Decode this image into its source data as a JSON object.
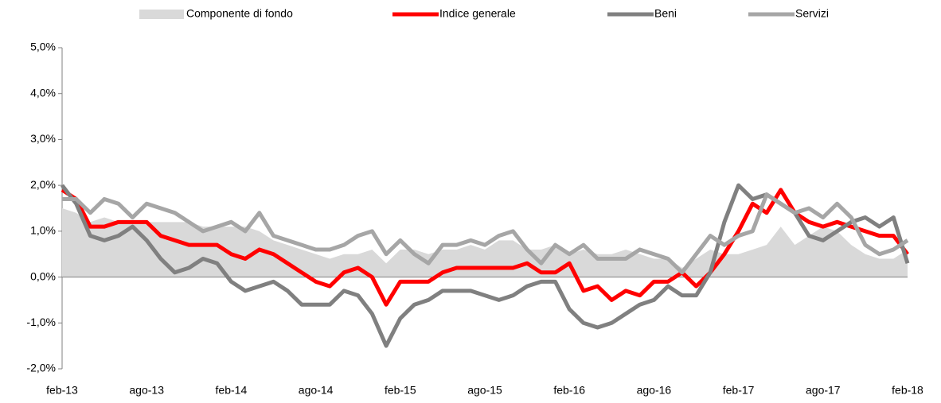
{
  "chart_data": {
    "type": "line",
    "categories": [
      "feb-13",
      null,
      null,
      null,
      null,
      null,
      "ago-13",
      null,
      null,
      null,
      null,
      null,
      "feb-14",
      null,
      null,
      null,
      null,
      null,
      "ago-14",
      null,
      null,
      null,
      null,
      null,
      "feb-15",
      null,
      null,
      null,
      null,
      null,
      "ago-15",
      null,
      null,
      null,
      null,
      null,
      "feb-16",
      null,
      null,
      null,
      null,
      null,
      "ago-16",
      null,
      null,
      null,
      null,
      null,
      "feb-17",
      null,
      null,
      null,
      null,
      null,
      "ago-17",
      null,
      null,
      null,
      null,
      null,
      "feb-18"
    ],
    "ylim": [
      -2,
      5
    ],
    "yticks": [
      {
        "value": -2,
        "label": "-2,0%"
      },
      {
        "value": -1,
        "label": "-1,0%"
      },
      {
        "value": 0,
        "label": "0,0%"
      },
      {
        "value": 1,
        "label": "1,0%"
      },
      {
        "value": 2,
        "label": "2,0%"
      },
      {
        "value": 3,
        "label": "3,0%"
      },
      {
        "value": 4,
        "label": "4,0%"
      },
      {
        "value": 5,
        "label": "5,0%"
      }
    ],
    "grid": false,
    "series": [
      {
        "name": "Componente di fondo",
        "color": "#d9d9d9",
        "area": true,
        "values": [
          1.5,
          1.4,
          1.2,
          1.3,
          1.2,
          1.2,
          1.2,
          1.2,
          1.2,
          1.2,
          1.1,
          1.1,
          1.1,
          1.1,
          1.0,
          0.8,
          0.7,
          0.6,
          0.5,
          0.4,
          0.5,
          0.5,
          0.6,
          0.3,
          0.6,
          0.6,
          0.5,
          0.6,
          0.6,
          0.7,
          0.6,
          0.8,
          0.8,
          0.6,
          0.6,
          0.7,
          0.5,
          0.6,
          0.5,
          0.5,
          0.6,
          0.5,
          0.4,
          0.4,
          0.2,
          0.4,
          0.6,
          0.5,
          0.5,
          0.6,
          0.7,
          1.1,
          0.7,
          0.9,
          1.1,
          1.0,
          0.7,
          0.5,
          0.4,
          0.4,
          0.6
        ]
      },
      {
        "name": "Indice generale",
        "color": "#ff0000",
        "values": [
          1.9,
          1.7,
          1.1,
          1.1,
          1.2,
          1.2,
          1.2,
          0.9,
          0.8,
          0.7,
          0.7,
          0.7,
          0.5,
          0.4,
          0.6,
          0.5,
          0.3,
          0.1,
          -0.1,
          -0.2,
          0.1,
          0.2,
          0.0,
          -0.6,
          -0.1,
          -0.1,
          -0.1,
          0.1,
          0.2,
          0.2,
          0.2,
          0.2,
          0.2,
          0.3,
          0.1,
          0.1,
          0.3,
          -0.3,
          -0.2,
          -0.5,
          -0.3,
          -0.4,
          -0.1,
          -0.1,
          0.1,
          -0.2,
          0.1,
          0.5,
          1.0,
          1.6,
          1.4,
          1.9,
          1.4,
          1.2,
          1.1,
          1.2,
          1.1,
          1.0,
          0.9,
          0.9,
          0.5
        ]
      },
      {
        "name": "Beni",
        "color": "#808080",
        "values": [
          2.0,
          1.6,
          0.9,
          0.8,
          0.9,
          1.1,
          0.8,
          0.4,
          0.1,
          0.2,
          0.4,
          0.3,
          -0.1,
          -0.3,
          -0.2,
          -0.1,
          -0.3,
          -0.6,
          -0.6,
          -0.6,
          -0.3,
          -0.4,
          -0.8,
          -1.5,
          -0.9,
          -0.6,
          -0.5,
          -0.3,
          -0.3,
          -0.3,
          -0.4,
          -0.5,
          -0.4,
          -0.2,
          -0.1,
          -0.1,
          -0.7,
          -1.0,
          -1.1,
          -1.0,
          -0.8,
          -0.6,
          -0.5,
          -0.2,
          -0.4,
          -0.4,
          0.1,
          1.2,
          2.0,
          1.7,
          1.8,
          1.6,
          1.4,
          0.9,
          0.8,
          1.0,
          1.2,
          1.3,
          1.1,
          1.3,
          0.3
        ]
      },
      {
        "name": "Servizi",
        "color": "#a6a6a6",
        "values": [
          1.7,
          1.7,
          1.4,
          1.7,
          1.6,
          1.3,
          1.6,
          1.5,
          1.4,
          1.2,
          1.0,
          1.1,
          1.2,
          1.0,
          1.4,
          0.9,
          0.8,
          0.7,
          0.6,
          0.6,
          0.7,
          0.9,
          1.0,
          0.5,
          0.8,
          0.5,
          0.3,
          0.7,
          0.7,
          0.8,
          0.7,
          0.9,
          1.0,
          0.6,
          0.3,
          0.7,
          0.5,
          0.7,
          0.4,
          0.4,
          0.4,
          0.6,
          0.5,
          0.4,
          0.1,
          0.5,
          0.9,
          0.7,
          0.9,
          1.0,
          1.8,
          1.6,
          1.4,
          1.5,
          1.3,
          1.6,
          1.3,
          0.7,
          0.5,
          0.6,
          0.8
        ]
      }
    ]
  }
}
